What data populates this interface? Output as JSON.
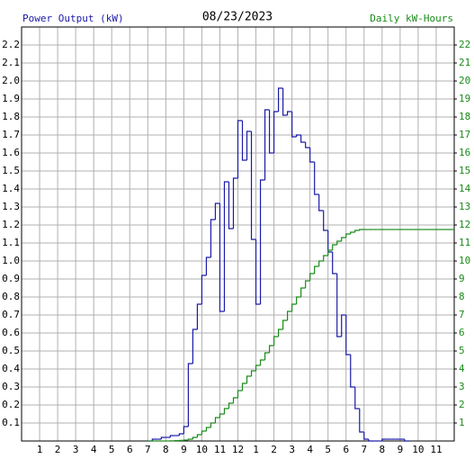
{
  "chart_data": {
    "type": "step",
    "title": "08/23/2023",
    "y_label": "Power Output (kW)",
    "y2_label": "Daily kW-Hours",
    "xlim": [
      0,
      24
    ],
    "xticks": [
      {
        "value": 1,
        "label": "1"
      },
      {
        "value": 2,
        "label": "2"
      },
      {
        "value": 3,
        "label": "3"
      },
      {
        "value": 4,
        "label": "4"
      },
      {
        "value": 5,
        "label": "5"
      },
      {
        "value": 6,
        "label": "6"
      },
      {
        "value": 7,
        "label": "7"
      },
      {
        "value": 8,
        "label": "8"
      },
      {
        "value": 9,
        "label": "9"
      },
      {
        "value": 10,
        "label": "10"
      },
      {
        "value": 11,
        "label": "11"
      },
      {
        "value": 12,
        "label": "12"
      },
      {
        "value": 13,
        "label": "1"
      },
      {
        "value": 14,
        "label": "2"
      },
      {
        "value": 15,
        "label": "3"
      },
      {
        "value": 16,
        "label": "4"
      },
      {
        "value": 17,
        "label": "5"
      },
      {
        "value": 18,
        "label": "6"
      },
      {
        "value": 19,
        "label": "7"
      },
      {
        "value": 20,
        "label": "8"
      },
      {
        "value": 21,
        "label": "9"
      },
      {
        "value": 22,
        "label": "10"
      },
      {
        "value": 23,
        "label": "11"
      }
    ],
    "ylim": [
      0,
      2.3
    ],
    "yticks": [
      0.1,
      0.2,
      0.3,
      0.4,
      0.5,
      0.6,
      0.7,
      0.8,
      0.9,
      {
        "value": 1,
        "label": "1.0"
      },
      1.1,
      1.2,
      1.3,
      1.4,
      1.5,
      1.6,
      1.7,
      1.8,
      1.9,
      {
        "value": 2,
        "label": "2.0"
      },
      2.1,
      2.2
    ],
    "y2lim": [
      0,
      23
    ],
    "y2ticks": [
      1,
      2,
      3,
      4,
      5,
      6,
      7,
      8,
      9,
      10,
      11,
      12,
      13,
      14,
      15,
      16,
      17,
      18,
      19,
      20,
      21,
      22
    ],
    "grid": true,
    "x": [
      7,
      7.25,
      7.5,
      7.75,
      8,
      8.25,
      8.5,
      8.75,
      9,
      9.25,
      9.5,
      9.75,
      10,
      10.25,
      10.5,
      10.75,
      11,
      11.25,
      11.5,
      11.75,
      12,
      12.25,
      12.5,
      12.75,
      13,
      13.25,
      13.5,
      13.75,
      14,
      14.25,
      14.5,
      14.75,
      15,
      15.25,
      15.5,
      15.75,
      16,
      16.25,
      16.5,
      16.75,
      17,
      17.25,
      17.5,
      17.75,
      18,
      18.25,
      18.5,
      18.75,
      19,
      19.25,
      19.5,
      19.75,
      20,
      20.25,
      20.5,
      20.75,
      21,
      21.25,
      21.5,
      21.75,
      22,
      22.25,
      22.5,
      22.75,
      23,
      23.25,
      23.5,
      23.75,
      24
    ],
    "series": [
      {
        "color": "#1a1aa8",
        "values": [
          0,
          0.01,
          0.01,
          0.02,
          0.02,
          0.03,
          0.03,
          0.04,
          0.08,
          0.43,
          0.62,
          0.76,
          0.92,
          1.02,
          1.23,
          1.32,
          0.72,
          1.44,
          1.18,
          1.46,
          1.78,
          1.56,
          1.72,
          1.12,
          0.76,
          1.45,
          1.84,
          1.6,
          1.83,
          1.96,
          1.81,
          1.83,
          1.69,
          1.7,
          1.66,
          1.63,
          1.55,
          1.37,
          1.28,
          1.17,
          1.05,
          0.93,
          0.58,
          0.7,
          0.48,
          0.3,
          0.18,
          0.05,
          0.01,
          0,
          0,
          0,
          0.01,
          0.01,
          0.01,
          0.01,
          0.01,
          0,
          null,
          null,
          null,
          null,
          null,
          null,
          null,
          null,
          null,
          null,
          null
        ]
      },
      {
        "color": "#1a8a1a",
        "axis": "y2",
        "values": [
          0,
          0,
          0,
          0,
          0,
          0.01,
          0.02,
          0.03,
          0.05,
          0.1,
          0.2,
          0.35,
          0.55,
          0.75,
          1.0,
          1.3,
          1.5,
          1.8,
          2.1,
          2.4,
          2.8,
          3.2,
          3.6,
          3.9,
          4.2,
          4.5,
          4.9,
          5.3,
          5.8,
          6.2,
          6.7,
          7.2,
          7.6,
          8.0,
          8.5,
          8.9,
          9.3,
          9.7,
          10.0,
          10.3,
          10.6,
          10.9,
          11.1,
          11.3,
          11.5,
          11.6,
          11.7,
          11.75,
          11.75,
          11.75,
          11.75,
          11.75,
          11.75,
          11.75,
          11.75,
          11.75,
          11.75,
          11.75,
          11.75,
          11.75,
          11.75,
          11.75,
          11.75,
          11.75,
          11.75,
          11.75,
          11.75,
          11.75,
          11.75
        ]
      }
    ]
  }
}
